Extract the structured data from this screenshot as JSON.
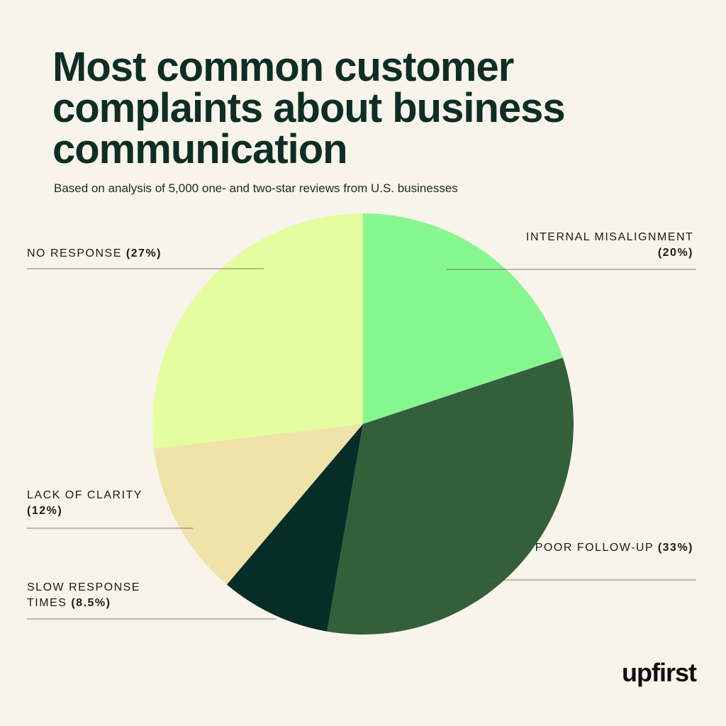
{
  "chart_data": {
    "type": "pie",
    "title": "Most common customer complaints about business communication",
    "subtitle": "Based on analysis of 5,000 one- and two-star reviews from U.S. businesses",
    "categories": [
      "INTERNAL MISALIGNMENT",
      "POOR FOLLOW-UP",
      "SLOW RESPONSE TIMES",
      "LACK OF CLARITY",
      "NO RESPONSE"
    ],
    "values": [
      20,
      33,
      8.5,
      12,
      27
    ],
    "value_labels": [
      "(20%)",
      "(33%)",
      "(8.5%)",
      "(12%)",
      "(27%)"
    ],
    "colors": [
      "#86f78f",
      "#33603a",
      "#062d27",
      "#efe3a9",
      "#e3fd9f"
    ],
    "brand": "upfirst"
  }
}
